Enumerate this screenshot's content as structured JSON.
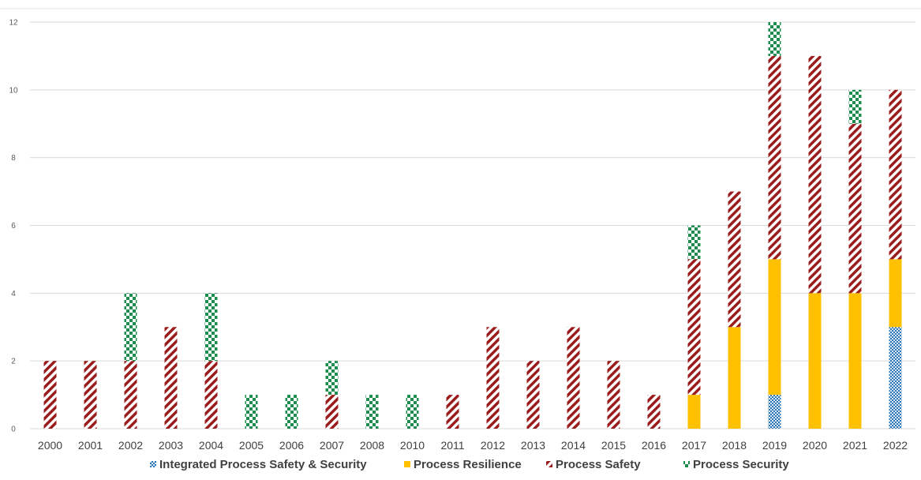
{
  "chart_data": {
    "type": "bar",
    "stacked": true,
    "title": "",
    "xlabel": "",
    "ylabel": "",
    "ylim": [
      0,
      12
    ],
    "yticks": [
      0,
      2,
      4,
      6,
      8,
      10,
      12
    ],
    "grid": "horizontal",
    "legend_position": "bottom",
    "categories": [
      "2000",
      "2001",
      "2002",
      "2003",
      "2004",
      "2005",
      "2006",
      "2007",
      "2008",
      "2010",
      "2011",
      "2012",
      "2013",
      "2014",
      "2015",
      "2016",
      "2017",
      "2018",
      "2019",
      "2020",
      "2021",
      "2022"
    ],
    "series": [
      {
        "name": "Integrated Process Safety & Security",
        "color": "#2e75b6",
        "pattern": "dots",
        "values": [
          0,
          0,
          0,
          0,
          0,
          0,
          0,
          0,
          0,
          0,
          0,
          0,
          0,
          0,
          0,
          0,
          0,
          0,
          1,
          0,
          0,
          3
        ]
      },
      {
        "name": "Process Resilience",
        "color": "#ffc000",
        "pattern": "solid",
        "values": [
          0,
          0,
          0,
          0,
          0,
          0,
          0,
          0,
          0,
          0,
          0,
          0,
          0,
          0,
          0,
          0,
          1,
          3,
          4,
          4,
          4,
          2
        ]
      },
      {
        "name": "Process Safety",
        "color": "#9b1c1c",
        "pattern": "diagonal-stripes",
        "values": [
          2,
          2,
          2,
          3,
          2,
          0,
          0,
          1,
          0,
          0,
          1,
          3,
          2,
          3,
          2,
          1,
          4,
          4,
          6,
          7,
          5,
          5
        ]
      },
      {
        "name": "Process Security",
        "color": "#1e8c4e",
        "pattern": "checkerboard",
        "values": [
          0,
          0,
          2,
          0,
          2,
          1,
          1,
          1,
          1,
          1,
          0,
          0,
          0,
          0,
          0,
          0,
          1,
          0,
          1,
          0,
          1,
          0
        ]
      }
    ]
  }
}
